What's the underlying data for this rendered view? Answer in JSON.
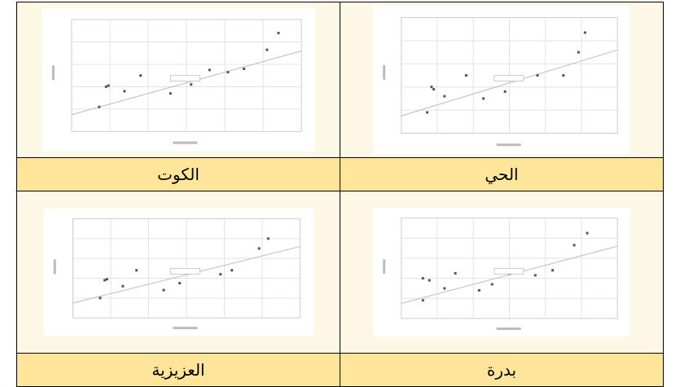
{
  "table": {
    "rows": [
      [
        "الكوت",
        "الحي"
      ],
      [
        "العزيزية",
        "بدرة"
      ]
    ]
  }
}
